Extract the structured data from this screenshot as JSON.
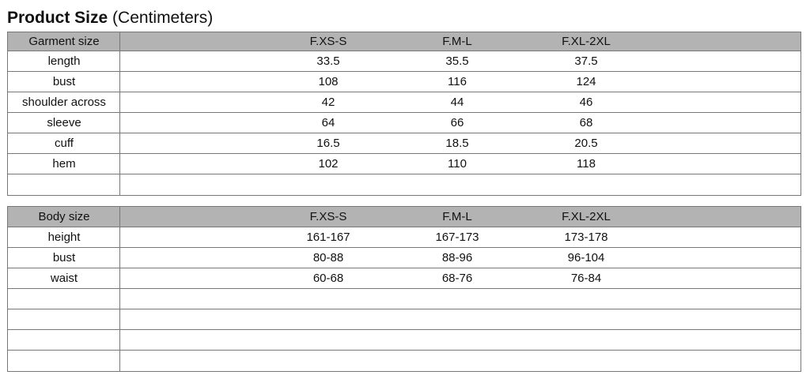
{
  "title": {
    "main": "Product Size",
    "unit": "(Centimeters)"
  },
  "tables": [
    {
      "header": [
        "Garment size",
        "F.XS-S",
        "F.M-L",
        "F.XL-2XL"
      ],
      "rows": [
        [
          "length",
          33.5,
          35.5,
          37.5
        ],
        [
          "bust",
          108,
          116,
          124
        ],
        [
          "shoulder across",
          42,
          44,
          46
        ],
        [
          "sleeve",
          64,
          66,
          68
        ],
        [
          "cuff",
          16.5,
          18.5,
          20.5
        ],
        [
          "hem",
          102,
          110,
          118
        ]
      ]
    },
    {
      "header": [
        "Body size",
        "F.XS-S",
        "F.M-L",
        "F.XL-2XL"
      ],
      "rows": [
        [
          "height",
          "161-167",
          "167-173",
          "173-178"
        ],
        [
          "bust",
          "80-88",
          "88-96",
          "96-104"
        ],
        [
          "waist",
          "60-68",
          "68-76",
          "76-84"
        ]
      ]
    }
  ]
}
